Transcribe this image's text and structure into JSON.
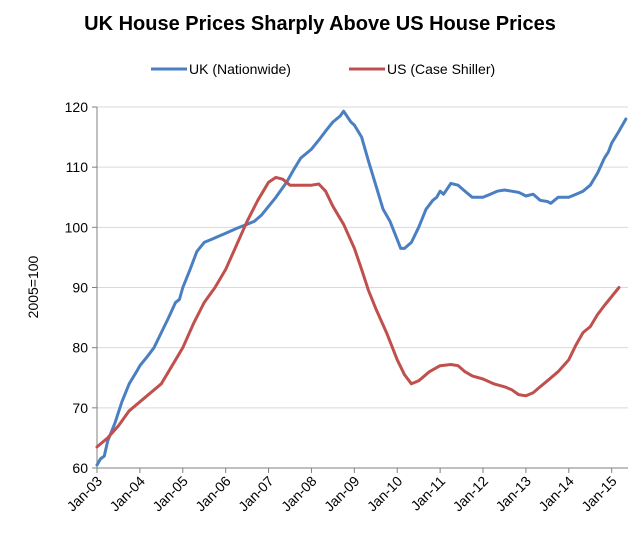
{
  "chart_data": {
    "type": "line",
    "title": "UK House Prices Sharply Above US House Prices",
    "xlabel": "",
    "ylabel": "2005=100",
    "ylim": [
      60,
      120
    ],
    "y_ticks": [
      60,
      70,
      80,
      90,
      100,
      110,
      120
    ],
    "x_tick_labels": [
      "Jan-03",
      "Jan-04",
      "Jan-05",
      "Jan-06",
      "Jan-07",
      "Jan-08",
      "Jan-09",
      "Jan-10",
      "Jan-11",
      "Jan-12",
      "Jan-13",
      "Jan-14",
      "Jan-15"
    ],
    "x_start": 2003.0,
    "x_end": 2015.33,
    "grid": "horizontal",
    "legend_position": "top",
    "series": [
      {
        "name": "UK (Nationwide)",
        "color": "#4a7fc1",
        "points": [
          [
            2003.0,
            60.5
          ],
          [
            2003.08,
            61.5
          ],
          [
            2003.17,
            62.0
          ],
          [
            2003.25,
            64.5
          ],
          [
            2003.42,
            67.5
          ],
          [
            2003.58,
            71.0
          ],
          [
            2003.75,
            74.0
          ],
          [
            2003.92,
            76.0
          ],
          [
            2004.0,
            77.0
          ],
          [
            2004.17,
            78.5
          ],
          [
            2004.33,
            80.0
          ],
          [
            2004.5,
            82.5
          ],
          [
            2004.67,
            85.0
          ],
          [
            2004.83,
            87.5
          ],
          [
            2004.92,
            88.0
          ],
          [
            2005.0,
            90.0
          ],
          [
            2005.17,
            93.0
          ],
          [
            2005.33,
            96.0
          ],
          [
            2005.5,
            97.5
          ],
          [
            2005.67,
            98.0
          ],
          [
            2005.83,
            98.5
          ],
          [
            2006.0,
            99.0
          ],
          [
            2006.25,
            99.8
          ],
          [
            2006.5,
            100.5
          ],
          [
            2006.67,
            101.0
          ],
          [
            2006.83,
            102.0
          ],
          [
            2007.0,
            103.5
          ],
          [
            2007.17,
            105.0
          ],
          [
            2007.42,
            107.5
          ],
          [
            2007.58,
            109.5
          ],
          [
            2007.75,
            111.5
          ],
          [
            2008.0,
            113.0
          ],
          [
            2008.17,
            114.5
          ],
          [
            2008.33,
            116.0
          ],
          [
            2008.5,
            117.5
          ],
          [
            2008.67,
            118.5
          ],
          [
            2008.75,
            119.3
          ],
          [
            2008.92,
            117.5
          ],
          [
            2009.0,
            117.0
          ],
          [
            2009.17,
            115.0
          ],
          [
            2009.33,
            111.0
          ],
          [
            2009.5,
            107.0
          ],
          [
            2009.67,
            103.0
          ],
          [
            2009.83,
            101.0
          ],
          [
            2010.0,
            98.0
          ],
          [
            2010.08,
            96.5
          ],
          [
            2010.17,
            96.5
          ],
          [
            2010.33,
            97.5
          ],
          [
            2010.5,
            100.0
          ],
          [
            2010.67,
            103.0
          ],
          [
            2010.83,
            104.5
          ],
          [
            2010.92,
            105.0
          ],
          [
            2011.0,
            106.0
          ],
          [
            2011.08,
            105.5
          ],
          [
            2011.25,
            107.3
          ],
          [
            2011.42,
            107.0
          ],
          [
            2011.58,
            106.0
          ],
          [
            2011.75,
            105.0
          ],
          [
            2011.92,
            105.0
          ],
          [
            2012.0,
            105.0
          ],
          [
            2012.17,
            105.5
          ],
          [
            2012.33,
            106.0
          ],
          [
            2012.5,
            106.2
          ],
          [
            2012.67,
            106.0
          ],
          [
            2012.83,
            105.8
          ],
          [
            2012.92,
            105.5
          ],
          [
            2013.0,
            105.2
          ],
          [
            2013.17,
            105.5
          ],
          [
            2013.33,
            104.5
          ],
          [
            2013.5,
            104.3
          ],
          [
            2013.58,
            104.0
          ],
          [
            2013.75,
            105.0
          ],
          [
            2013.92,
            105.0
          ],
          [
            2014.0,
            105.0
          ],
          [
            2014.17,
            105.5
          ],
          [
            2014.33,
            106.0
          ],
          [
            2014.5,
            107.0
          ],
          [
            2014.67,
            109.0
          ],
          [
            2014.83,
            111.5
          ],
          [
            2014.92,
            112.5
          ],
          [
            2015.0,
            114.0
          ],
          [
            2015.17,
            116.0
          ],
          [
            2015.33,
            118.0
          ]
        ]
      },
      {
        "name": "US (Case Shiller)",
        "color": "#c0504d",
        "points": [
          [
            2003.0,
            63.5
          ],
          [
            2003.25,
            65.0
          ],
          [
            2003.5,
            67.0
          ],
          [
            2003.75,
            69.5
          ],
          [
            2004.0,
            71.0
          ],
          [
            2004.25,
            72.5
          ],
          [
            2004.5,
            74.0
          ],
          [
            2004.75,
            77.0
          ],
          [
            2005.0,
            80.0
          ],
          [
            2005.25,
            84.0
          ],
          [
            2005.5,
            87.5
          ],
          [
            2005.75,
            90.0
          ],
          [
            2006.0,
            93.0
          ],
          [
            2006.25,
            97.0
          ],
          [
            2006.5,
            101.0
          ],
          [
            2006.75,
            104.5
          ],
          [
            2007.0,
            107.5
          ],
          [
            2007.17,
            108.3
          ],
          [
            2007.33,
            108.0
          ],
          [
            2007.5,
            107.0
          ],
          [
            2007.75,
            107.0
          ],
          [
            2008.0,
            107.0
          ],
          [
            2008.17,
            107.2
          ],
          [
            2008.33,
            106.0
          ],
          [
            2008.5,
            103.5
          ],
          [
            2008.75,
            100.5
          ],
          [
            2009.0,
            96.5
          ],
          [
            2009.17,
            93.0
          ],
          [
            2009.33,
            89.5
          ],
          [
            2009.5,
            86.5
          ],
          [
            2009.75,
            82.5
          ],
          [
            2010.0,
            78.0
          ],
          [
            2010.17,
            75.5
          ],
          [
            2010.33,
            74.0
          ],
          [
            2010.5,
            74.5
          ],
          [
            2010.75,
            76.0
          ],
          [
            2011.0,
            77.0
          ],
          [
            2011.25,
            77.2
          ],
          [
            2011.42,
            77.0
          ],
          [
            2011.58,
            76.0
          ],
          [
            2011.75,
            75.3
          ],
          [
            2012.0,
            74.8
          ],
          [
            2012.25,
            74.0
          ],
          [
            2012.5,
            73.5
          ],
          [
            2012.67,
            73.0
          ],
          [
            2012.83,
            72.2
          ],
          [
            2013.0,
            72.0
          ],
          [
            2013.17,
            72.5
          ],
          [
            2013.33,
            73.5
          ],
          [
            2013.5,
            74.5
          ],
          [
            2013.75,
            76.0
          ],
          [
            2014.0,
            78.0
          ],
          [
            2014.17,
            80.5
          ],
          [
            2014.33,
            82.5
          ],
          [
            2014.5,
            83.5
          ],
          [
            2014.67,
            85.5
          ],
          [
            2014.83,
            87.0
          ],
          [
            2015.0,
            88.5
          ],
          [
            2015.17,
            90.0
          ]
        ]
      }
    ]
  }
}
